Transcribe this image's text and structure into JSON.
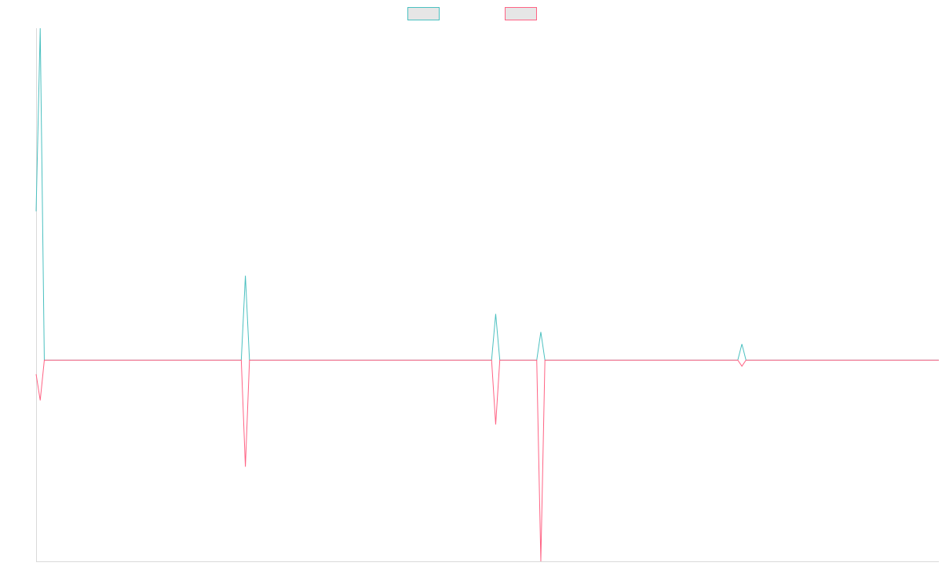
{
  "chart_data": {
    "type": "line",
    "title": "",
    "xlabel": "",
    "ylabel": "",
    "legend": {
      "position": "top-center"
    },
    "x": [
      0,
      1,
      2,
      3,
      4,
      5,
      6,
      7,
      8,
      9,
      10,
      11,
      12,
      13,
      14,
      15,
      16,
      17,
      18,
      19,
      20,
      21,
      22,
      23,
      24,
      25,
      26,
      27,
      28,
      29,
      30,
      31,
      32,
      33,
      34,
      35,
      36,
      37,
      38,
      39,
      40,
      41,
      42,
      43,
      44,
      45,
      46,
      47,
      48,
      49,
      50,
      51,
      52,
      53,
      54,
      55,
      56,
      57,
      58,
      59,
      60,
      61,
      62,
      63,
      64,
      65,
      66,
      67,
      68,
      69,
      70,
      71,
      72,
      73,
      74,
      75,
      76,
      77,
      78,
      79,
      80,
      81,
      82,
      83,
      84,
      85,
      86,
      87,
      88,
      89,
      90,
      91,
      92,
      93,
      94,
      95,
      96,
      97,
      98,
      99,
      100,
      101,
      102,
      103,
      104,
      105,
      106,
      107,
      108,
      109,
      110,
      111,
      112,
      113,
      114,
      115,
      116,
      117,
      118,
      119,
      120,
      121,
      122,
      123,
      124,
      125,
      126,
      127,
      128,
      129,
      130,
      131,
      132,
      133,
      134,
      135,
      136,
      137,
      138,
      139,
      140,
      141,
      142,
      143,
      144,
      145,
      146,
      147,
      148,
      149,
      150,
      151,
      152,
      153,
      154,
      155,
      156,
      157,
      158,
      159,
      160,
      161,
      162,
      163,
      164,
      165,
      166,
      167,
      168,
      169,
      170,
      171,
      172,
      173,
      174,
      175,
      176,
      177,
      178,
      179,
      180,
      181,
      182,
      183,
      184,
      185,
      186,
      187,
      188,
      189,
      190,
      191,
      192,
      193,
      194,
      195,
      196,
      197,
      198,
      199,
      200,
      201,
      202,
      203,
      204,
      205,
      206,
      207,
      208,
      209,
      210,
      211,
      212,
      213,
      214,
      215,
      216,
      217,
      218,
      219,
      220
    ],
    "ylim": [
      -100,
      165
    ],
    "series": [
      {
        "name": "",
        "color": "#4bc0c0",
        "fill": "#e6e6e6",
        "values": [
          74,
          165,
          0,
          0,
          0,
          0,
          0,
          0,
          0,
          0,
          0,
          0,
          0,
          0,
          0,
          0,
          0,
          0,
          0,
          0,
          0,
          0,
          0,
          0,
          0,
          0,
          0,
          0,
          0,
          0,
          0,
          0,
          0,
          0,
          0,
          0,
          0,
          0,
          0,
          0,
          0,
          0,
          0,
          0,
          0,
          0,
          0,
          0,
          0,
          0,
          0,
          42,
          0,
          0,
          0,
          0,
          0,
          0,
          0,
          0,
          0,
          0,
          0,
          0,
          0,
          0,
          0,
          0,
          0,
          0,
          0,
          0,
          0,
          0,
          0,
          0,
          0,
          0,
          0,
          0,
          0,
          0,
          0,
          0,
          0,
          0,
          0,
          0,
          0,
          0,
          0,
          0,
          0,
          0,
          0,
          0,
          0,
          0,
          0,
          0,
          0,
          0,
          0,
          0,
          0,
          0,
          0,
          0,
          0,
          0,
          0,
          0,
          23,
          0,
          0,
          0,
          0,
          0,
          0,
          0,
          0,
          0,
          0,
          14,
          0,
          0,
          0,
          0,
          0,
          0,
          0,
          0,
          0,
          0,
          0,
          0,
          0,
          0,
          0,
          0,
          0,
          0,
          0,
          0,
          0,
          0,
          0,
          0,
          0,
          0,
          0,
          0,
          0,
          0,
          0,
          0,
          0,
          0,
          0,
          0,
          0,
          0,
          0,
          0,
          0,
          0,
          0,
          0,
          0,
          0,
          0,
          0,
          8,
          0,
          0,
          0,
          0,
          0,
          0,
          0,
          0,
          0,
          0,
          0,
          0,
          0,
          0,
          0,
          0,
          0,
          0,
          0,
          0,
          0,
          0,
          0,
          0,
          0,
          0,
          0,
          0,
          0,
          0,
          0,
          0,
          0,
          0,
          0,
          0,
          0,
          0,
          0,
          0,
          0,
          0,
          0,
          0,
          0,
          0,
          0,
          0
        ]
      },
      {
        "name": "",
        "color": "#ff6384",
        "fill": "#e6e6e6",
        "values": [
          -7,
          -20,
          0,
          0,
          0,
          0,
          0,
          0,
          0,
          0,
          0,
          0,
          0,
          0,
          0,
          0,
          0,
          0,
          0,
          0,
          0,
          0,
          0,
          0,
          0,
          0,
          0,
          0,
          0,
          0,
          0,
          0,
          0,
          0,
          0,
          0,
          0,
          0,
          0,
          0,
          0,
          0,
          0,
          0,
          0,
          0,
          0,
          0,
          0,
          0,
          0,
          -53,
          0,
          0,
          0,
          0,
          0,
          0,
          0,
          0,
          0,
          0,
          0,
          0,
          0,
          0,
          0,
          0,
          0,
          0,
          0,
          0,
          0,
          0,
          0,
          0,
          0,
          0,
          0,
          0,
          0,
          0,
          0,
          0,
          0,
          0,
          0,
          0,
          0,
          0,
          0,
          0,
          0,
          0,
          0,
          0,
          0,
          0,
          0,
          0,
          0,
          0,
          0,
          0,
          0,
          0,
          0,
          0,
          0,
          0,
          0,
          0,
          -32,
          0,
          0,
          0,
          0,
          0,
          0,
          0,
          0,
          0,
          0,
          -100,
          0,
          0,
          0,
          0,
          0,
          0,
          0,
          0,
          0,
          0,
          0,
          0,
          0,
          0,
          0,
          0,
          0,
          0,
          0,
          0,
          0,
          0,
          0,
          0,
          0,
          0,
          0,
          0,
          0,
          0,
          0,
          0,
          0,
          0,
          0,
          0,
          0,
          0,
          0,
          0,
          0,
          0,
          0,
          0,
          0,
          0,
          0,
          0,
          -3,
          0,
          0,
          0,
          0,
          0,
          0,
          0,
          0,
          0,
          0,
          0,
          0,
          0,
          0,
          0,
          0,
          0,
          0,
          0,
          0,
          0,
          0,
          0,
          0,
          0,
          0,
          0,
          0,
          0,
          0,
          0,
          0,
          0,
          0,
          0,
          0,
          0,
          0,
          0,
          0,
          0,
          0,
          0,
          0,
          0,
          0,
          0,
          0
        ]
      }
    ],
    "grid": false
  }
}
